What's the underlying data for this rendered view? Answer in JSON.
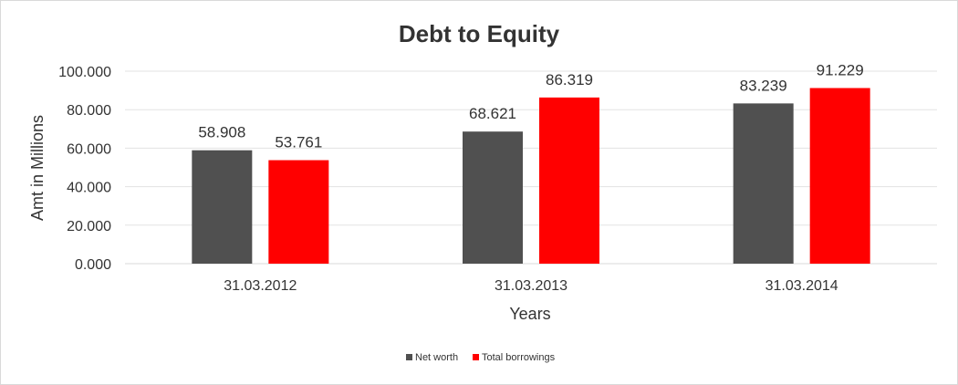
{
  "chart_data": {
    "type": "bar",
    "title": "Debt to Equity",
    "xlabel": "Years",
    "ylabel": "Amt in Millions",
    "categories": [
      "31.03.2012",
      "31.03.2013",
      "31.03.2014"
    ],
    "series": [
      {
        "name": "Net worth",
        "values": [
          58.908,
          68.621,
          83.239
        ],
        "labels": [
          "58.908",
          "68.621",
          "83.239"
        ],
        "color": "#505050"
      },
      {
        "name": "Total borrowings",
        "values": [
          53.761,
          86.319,
          91.229
        ],
        "labels": [
          "53.761",
          "86.319",
          "91.229"
        ],
        "color": "#ff0000"
      }
    ],
    "ylim": [
      0,
      100
    ],
    "yticks": [
      0,
      20,
      40,
      60,
      80,
      100
    ],
    "ytick_labels": [
      "0.000",
      "20.000",
      "40.000",
      "60.000",
      "80.000",
      "100.000"
    ],
    "grid": true,
    "legend_position": "bottom"
  }
}
